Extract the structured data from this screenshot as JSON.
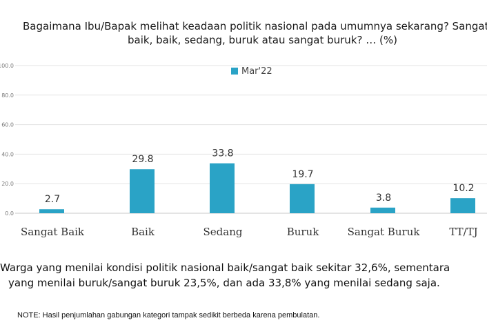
{
  "title": {
    "line1": "Bagaimana Ibu/Bapak melihat keadaan politik nasional pada umumnya sekarang? Sangat",
    "line2": "baik, baik, sedang, buruk atau sangat buruk? … (%)"
  },
  "chart_data": {
    "type": "bar",
    "categories": [
      "Sangat Baik",
      "Baik",
      "Sedang",
      "Buruk",
      "Sangat Buruk",
      "TT/TJ"
    ],
    "series": [
      {
        "name": "Mar'22",
        "values": [
          2.7,
          29.8,
          33.8,
          19.7,
          3.8,
          10.2
        ],
        "color": "#2aa3c6"
      }
    ],
    "ylim": [
      0,
      100
    ],
    "yticks": [
      "0.0",
      "20.0",
      "40.0",
      "60.0",
      "80.0",
      "100.0"
    ],
    "grid": true,
    "legend": "top-center",
    "data_labels": [
      "2.7",
      "29.8",
      "33.8",
      "19.7",
      "3.8",
      "10.2"
    ]
  },
  "summary": {
    "line1": "Warga yang menilai kondisi politik nasional baik/sangat baik sekitar 32,6%, sementara",
    "line2": "yang menilai buruk/sangat buruk 23,5%, dan ada 33,8% yang menilai sedang saja."
  },
  "note": "NOTE: Hasil penjumlahan gabungan kategori tampak sedikit berbeda karena pembulatan."
}
